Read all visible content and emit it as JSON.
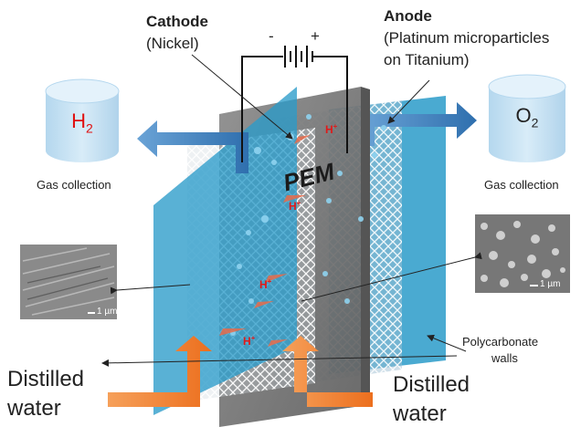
{
  "labels": {
    "cathode_title": "Cathode",
    "cathode_material": "(Nickel)",
    "anode_title": "Anode",
    "anode_material_line1": "(Platinum microparticles",
    "anode_material_line2": "on Titanium)",
    "battery_minus": "-",
    "battery_plus": "+",
    "pem": "PEM",
    "h2_symbol": "H",
    "h2_subscript": "2",
    "o2_symbol": "O",
    "o2_subscript": "2",
    "gas_collection_left": "Gas collection",
    "gas_collection_right": "Gas collection",
    "polycarbonate_line1": "Polycarbonate",
    "polycarbonate_line2": "walls",
    "distilled_left_1": "Distilled",
    "distilled_left_2": "water",
    "distilled_right_1": "Distilled",
    "distilled_right_2": "water",
    "proton_symbol": "H",
    "proton_charge": "+",
    "scale_left": "1 µm",
    "scale_right": "1 µm"
  },
  "colors": {
    "h2_text": "#e01010",
    "wall": "#2a9bc9",
    "tank": "#c7e3f3",
    "gas_arrow": "#4d8ec9",
    "water_arrow": "#f07f2a",
    "membrane": "#7d7d7d",
    "proton": "#e01919"
  }
}
